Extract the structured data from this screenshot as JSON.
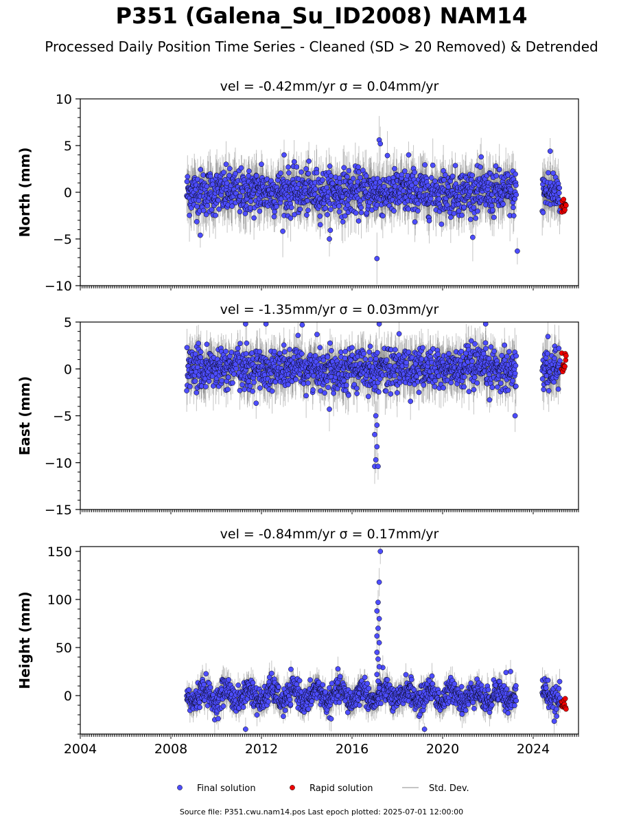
{
  "title": "P351 (Galena_Su_ID2008) NAM14",
  "subtitle": "Processed Daily Position Time Series - Cleaned (SD > 20 Removed) & Detrended",
  "source_text": "Source file: P351.cwu.nam14.pos  Last epoch plotted: 2025-07-01 12:00:00",
  "colors": {
    "final": "#4d4dff",
    "rapid": "#ee0000",
    "stddev": "#b0b0b0",
    "edge": "#000000"
  },
  "legend": [
    {
      "label": "Final solution",
      "marker": "dot",
      "color": "#4d4dff"
    },
    {
      "label": "Rapid solution",
      "marker": "dot",
      "color": "#ee0000"
    },
    {
      "label": "Std. Dev.",
      "marker": "line",
      "color": "#b0b0b0"
    }
  ],
  "chart_data": [
    {
      "type": "scatter",
      "panel_title": "vel = -0.42mm/yr   σ = 0.04mm/yr",
      "ylabel": "North (mm)",
      "xlim": [
        2004,
        2026
      ],
      "ylim": [
        -10,
        10
      ],
      "x_ticks": [
        2004,
        2008,
        2012,
        2016,
        2020,
        2024
      ],
      "y_ticks": [
        -10,
        -5,
        0,
        5,
        10
      ],
      "y_tick_labels": [
        "−10",
        "−5",
        "0",
        "5",
        "10"
      ],
      "final_segments": [
        [
          2008.7,
          2010.9
        ],
        [
          2010.95,
          2019.6
        ],
        [
          2019.65,
          2023.25
        ],
        [
          2024.4,
          2025.2
        ]
      ],
      "noise_sd": 1.2,
      "outliers": [
        [
          2017.1,
          -7.1
        ],
        [
          2023.3,
          -6.3
        ],
        [
          2017.2,
          5.6
        ],
        [
          2017.25,
          5.2
        ],
        [
          2013.0,
          4.0
        ],
        [
          2024.75,
          4.4
        ],
        [
          2012.0,
          3.0
        ],
        [
          2018.5,
          4.0
        ],
        [
          2015.0,
          -5.0
        ],
        [
          2009.3,
          -4.6
        ]
      ],
      "rapid": {
        "x_range": [
          2025.25,
          2025.45
        ],
        "y_range": [
          -2.2,
          -0.6
        ],
        "count": 12
      }
    },
    {
      "type": "scatter",
      "panel_title": "vel = -1.35mm/yr   σ = 0.03mm/yr",
      "ylabel": "East (mm)",
      "xlim": [
        2004,
        2026
      ],
      "ylim": [
        -15,
        5
      ],
      "x_ticks": [
        2004,
        2008,
        2012,
        2016,
        2020,
        2024
      ],
      "y_ticks": [
        -15,
        -10,
        -5,
        0,
        5
      ],
      "y_tick_labels": [
        "−15",
        "−10",
        "−5",
        "0",
        "5"
      ],
      "final_segments": [
        [
          2008.7,
          2010.9
        ],
        [
          2010.95,
          2019.6
        ],
        [
          2019.65,
          2023.25
        ],
        [
          2024.4,
          2025.2
        ]
      ],
      "noise_sd": 1.1,
      "outliers": [
        [
          2017.0,
          -10.4
        ],
        [
          2017.15,
          -10.4
        ],
        [
          2017.05,
          -9.7
        ],
        [
          2017.1,
          -8.3
        ],
        [
          2017.0,
          -7.0
        ],
        [
          2017.1,
          -6.0
        ],
        [
          2017.05,
          -5.0
        ],
        [
          2023.2,
          -5.0
        ],
        [
          2011.3,
          4.8
        ],
        [
          2012.2,
          4.8
        ],
        [
          2013.8,
          4.7
        ],
        [
          2017.2,
          4.8
        ],
        [
          2021.9,
          4.8
        ],
        [
          2015.0,
          -4.3
        ]
      ],
      "rapid": {
        "x_range": [
          2025.25,
          2025.45
        ],
        "y_range": [
          -0.6,
          2.2
        ],
        "count": 12
      }
    },
    {
      "type": "scatter",
      "panel_title": "vel = -0.84mm/yr   σ = 0.17mm/yr",
      "ylabel": "Height (mm)",
      "xlim": [
        2004,
        2026
      ],
      "ylim": [
        -40,
        155
      ],
      "x_ticks": [
        2004,
        2008,
        2012,
        2016,
        2020,
        2024
      ],
      "x_tick_labels": [
        "2004",
        "2008",
        "2012",
        "2016",
        "2020",
        "2024"
      ],
      "y_ticks": [
        0,
        50,
        100,
        150
      ],
      "y_tick_labels": [
        "0",
        "50",
        "100",
        "150"
      ],
      "final_segments": [
        [
          2008.7,
          2010.9
        ],
        [
          2010.95,
          2019.6
        ],
        [
          2019.65,
          2023.25
        ],
        [
          2024.4,
          2025.2
        ]
      ],
      "noise_sd": 6.5,
      "outliers": [
        [
          2017.25,
          150
        ],
        [
          2017.2,
          118
        ],
        [
          2017.15,
          97
        ],
        [
          2017.1,
          88
        ],
        [
          2017.2,
          80
        ],
        [
          2017.15,
          70
        ],
        [
          2017.1,
          62
        ],
        [
          2017.2,
          55
        ],
        [
          2017.1,
          45
        ],
        [
          2017.15,
          38
        ],
        [
          2017.2,
          30
        ],
        [
          2017.1,
          22
        ],
        [
          2017.15,
          15
        ],
        [
          2017.2,
          8
        ],
        [
          2011.3,
          -35
        ],
        [
          2019.2,
          -35
        ],
        [
          2022.8,
          24
        ],
        [
          2023.0,
          25
        ]
      ],
      "rapid": {
        "x_range": [
          2025.25,
          2025.45
        ],
        "y_range": [
          -14,
          -3
        ],
        "count": 12
      }
    }
  ]
}
